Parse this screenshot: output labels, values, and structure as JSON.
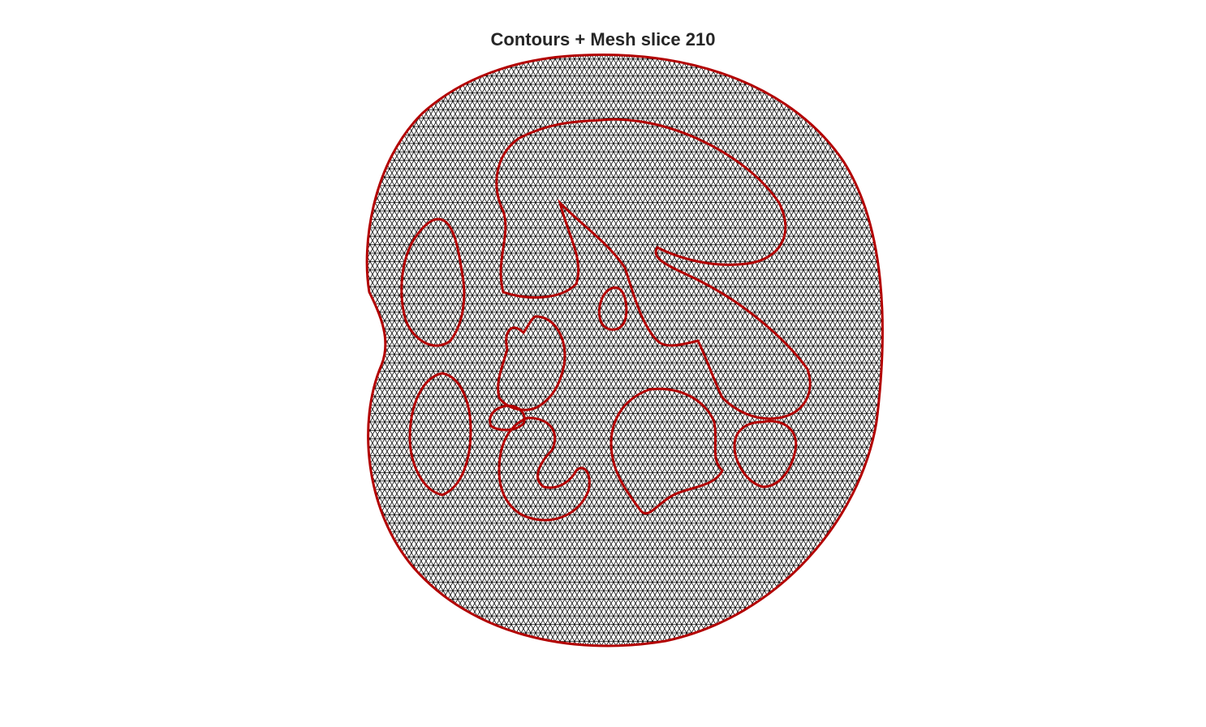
{
  "figure": {
    "title": "Contours + Mesh slice 210",
    "mesh_color": "#000000",
    "contour_color": "#b30000",
    "background": "#ffffff"
  }
}
